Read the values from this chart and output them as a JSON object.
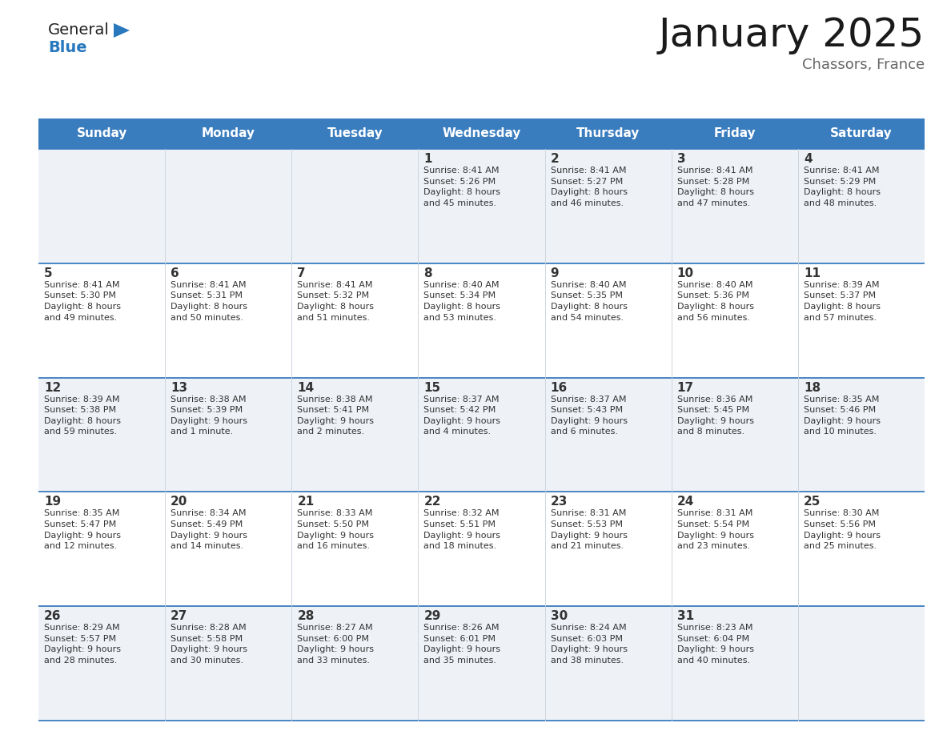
{
  "title": "January 2025",
  "subtitle": "Chassors, France",
  "header_color": "#3a7dbf",
  "header_text_color": "#ffffff",
  "cell_bg_even": "#eef2f7",
  "cell_bg_odd": "#ffffff",
  "border_color": "#3a7dbf",
  "text_color": "#333333",
  "subtitle_color": "#666666",
  "days_of_week": [
    "Sunday",
    "Monday",
    "Tuesday",
    "Wednesday",
    "Thursday",
    "Friday",
    "Saturday"
  ],
  "weeks": [
    [
      {
        "day": null,
        "info": null
      },
      {
        "day": null,
        "info": null
      },
      {
        "day": null,
        "info": null
      },
      {
        "day": 1,
        "info": "Sunrise: 8:41 AM\nSunset: 5:26 PM\nDaylight: 8 hours\nand 45 minutes."
      },
      {
        "day": 2,
        "info": "Sunrise: 8:41 AM\nSunset: 5:27 PM\nDaylight: 8 hours\nand 46 minutes."
      },
      {
        "day": 3,
        "info": "Sunrise: 8:41 AM\nSunset: 5:28 PM\nDaylight: 8 hours\nand 47 minutes."
      },
      {
        "day": 4,
        "info": "Sunrise: 8:41 AM\nSunset: 5:29 PM\nDaylight: 8 hours\nand 48 minutes."
      }
    ],
    [
      {
        "day": 5,
        "info": "Sunrise: 8:41 AM\nSunset: 5:30 PM\nDaylight: 8 hours\nand 49 minutes."
      },
      {
        "day": 6,
        "info": "Sunrise: 8:41 AM\nSunset: 5:31 PM\nDaylight: 8 hours\nand 50 minutes."
      },
      {
        "day": 7,
        "info": "Sunrise: 8:41 AM\nSunset: 5:32 PM\nDaylight: 8 hours\nand 51 minutes."
      },
      {
        "day": 8,
        "info": "Sunrise: 8:40 AM\nSunset: 5:34 PM\nDaylight: 8 hours\nand 53 minutes."
      },
      {
        "day": 9,
        "info": "Sunrise: 8:40 AM\nSunset: 5:35 PM\nDaylight: 8 hours\nand 54 minutes."
      },
      {
        "day": 10,
        "info": "Sunrise: 8:40 AM\nSunset: 5:36 PM\nDaylight: 8 hours\nand 56 minutes."
      },
      {
        "day": 11,
        "info": "Sunrise: 8:39 AM\nSunset: 5:37 PM\nDaylight: 8 hours\nand 57 minutes."
      }
    ],
    [
      {
        "day": 12,
        "info": "Sunrise: 8:39 AM\nSunset: 5:38 PM\nDaylight: 8 hours\nand 59 minutes."
      },
      {
        "day": 13,
        "info": "Sunrise: 8:38 AM\nSunset: 5:39 PM\nDaylight: 9 hours\nand 1 minute."
      },
      {
        "day": 14,
        "info": "Sunrise: 8:38 AM\nSunset: 5:41 PM\nDaylight: 9 hours\nand 2 minutes."
      },
      {
        "day": 15,
        "info": "Sunrise: 8:37 AM\nSunset: 5:42 PM\nDaylight: 9 hours\nand 4 minutes."
      },
      {
        "day": 16,
        "info": "Sunrise: 8:37 AM\nSunset: 5:43 PM\nDaylight: 9 hours\nand 6 minutes."
      },
      {
        "day": 17,
        "info": "Sunrise: 8:36 AM\nSunset: 5:45 PM\nDaylight: 9 hours\nand 8 minutes."
      },
      {
        "day": 18,
        "info": "Sunrise: 8:35 AM\nSunset: 5:46 PM\nDaylight: 9 hours\nand 10 minutes."
      }
    ],
    [
      {
        "day": 19,
        "info": "Sunrise: 8:35 AM\nSunset: 5:47 PM\nDaylight: 9 hours\nand 12 minutes."
      },
      {
        "day": 20,
        "info": "Sunrise: 8:34 AM\nSunset: 5:49 PM\nDaylight: 9 hours\nand 14 minutes."
      },
      {
        "day": 21,
        "info": "Sunrise: 8:33 AM\nSunset: 5:50 PM\nDaylight: 9 hours\nand 16 minutes."
      },
      {
        "day": 22,
        "info": "Sunrise: 8:32 AM\nSunset: 5:51 PM\nDaylight: 9 hours\nand 18 minutes."
      },
      {
        "day": 23,
        "info": "Sunrise: 8:31 AM\nSunset: 5:53 PM\nDaylight: 9 hours\nand 21 minutes."
      },
      {
        "day": 24,
        "info": "Sunrise: 8:31 AM\nSunset: 5:54 PM\nDaylight: 9 hours\nand 23 minutes."
      },
      {
        "day": 25,
        "info": "Sunrise: 8:30 AM\nSunset: 5:56 PM\nDaylight: 9 hours\nand 25 minutes."
      }
    ],
    [
      {
        "day": 26,
        "info": "Sunrise: 8:29 AM\nSunset: 5:57 PM\nDaylight: 9 hours\nand 28 minutes."
      },
      {
        "day": 27,
        "info": "Sunrise: 8:28 AM\nSunset: 5:58 PM\nDaylight: 9 hours\nand 30 minutes."
      },
      {
        "day": 28,
        "info": "Sunrise: 8:27 AM\nSunset: 6:00 PM\nDaylight: 9 hours\nand 33 minutes."
      },
      {
        "day": 29,
        "info": "Sunrise: 8:26 AM\nSunset: 6:01 PM\nDaylight: 9 hours\nand 35 minutes."
      },
      {
        "day": 30,
        "info": "Sunrise: 8:24 AM\nSunset: 6:03 PM\nDaylight: 9 hours\nand 38 minutes."
      },
      {
        "day": 31,
        "info": "Sunrise: 8:23 AM\nSunset: 6:04 PM\nDaylight: 9 hours\nand 40 minutes."
      },
      {
        "day": null,
        "info": null
      }
    ]
  ],
  "logo_general_color": "#222222",
  "logo_blue_color": "#2878be",
  "logo_triangle_color": "#2878be",
  "title_fontsize": 36,
  "subtitle_fontsize": 13,
  "header_fontsize": 11,
  "day_num_fontsize": 11,
  "info_fontsize": 8
}
